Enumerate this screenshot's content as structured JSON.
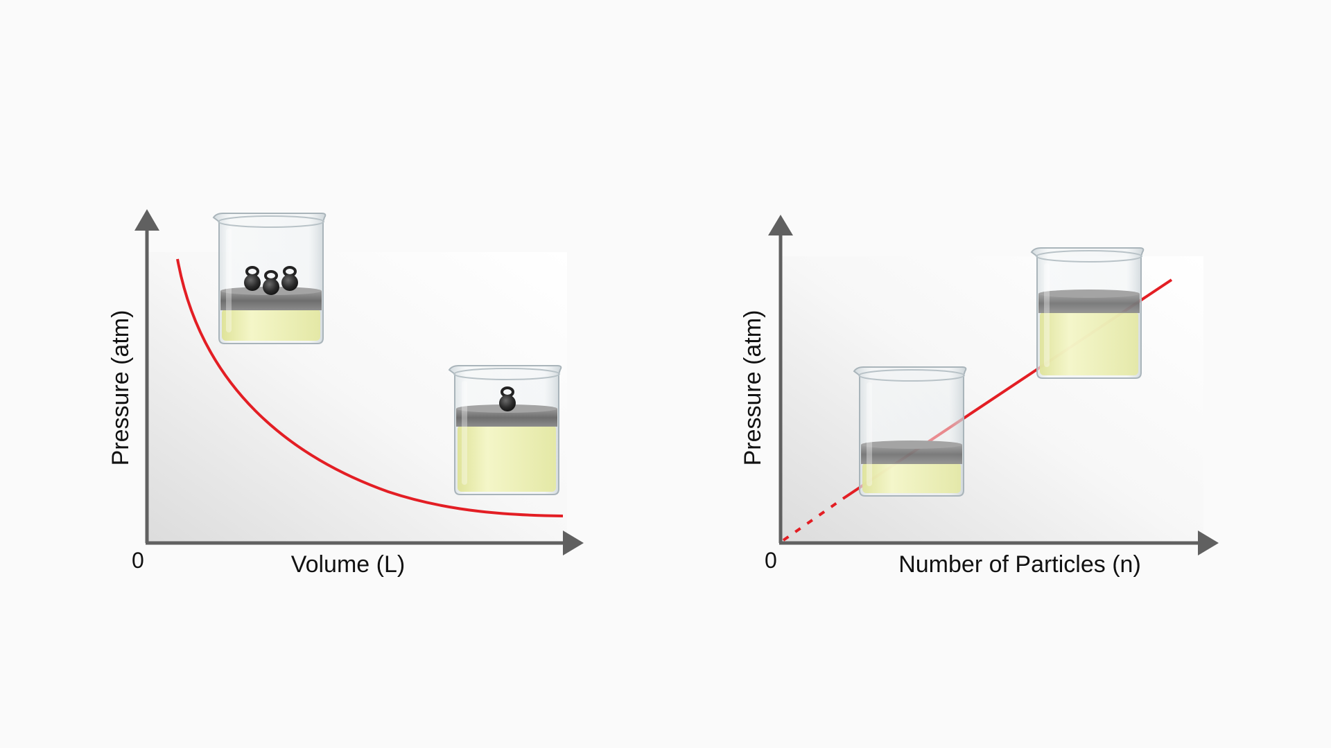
{
  "diagrams": [
    {
      "id": "pressure-volume",
      "y_axis_label": "Pressure (atm)",
      "x_axis_label": "Volume (L)",
      "origin_label": "0",
      "relationship": "inverse",
      "beakers": [
        {
          "weights": 3,
          "gas_level": "low"
        },
        {
          "weights": 1,
          "gas_level": "high"
        }
      ]
    },
    {
      "id": "pressure-particles",
      "y_axis_label": "Pressure (atm)",
      "x_axis_label": "Number of Particles (n)",
      "origin_label": "0",
      "relationship": "direct",
      "beakers": [
        {
          "weights": 0,
          "gas_level": "low"
        },
        {
          "weights": 0,
          "gas_level": "high"
        }
      ]
    }
  ],
  "colors": {
    "curve": "#e31e24",
    "axis": "#606060",
    "liquid": "#eef0b8",
    "piston": "#7a7a7a",
    "weight": "#2b2b2b"
  }
}
